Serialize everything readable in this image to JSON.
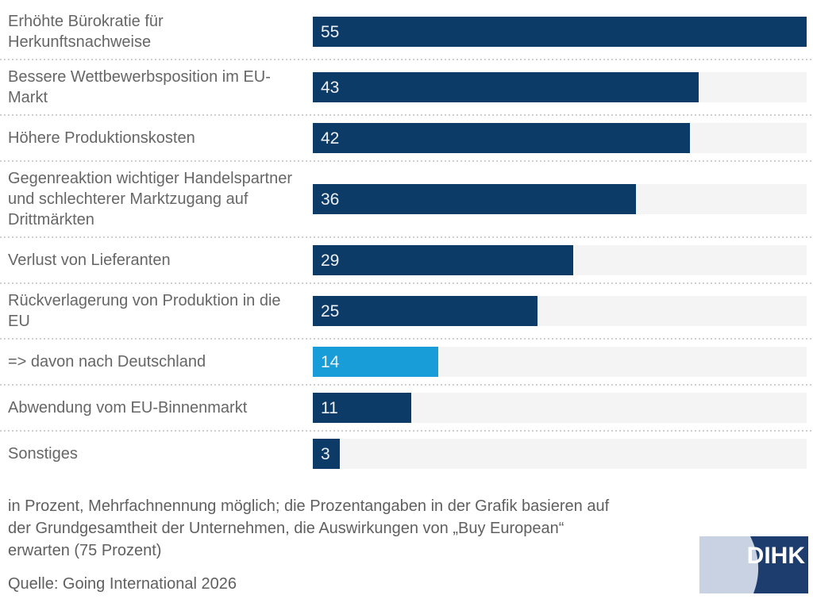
{
  "chart_data": {
    "type": "bar",
    "orientation": "horizontal",
    "title": "",
    "xlabel": "",
    "ylabel": "",
    "max": 55,
    "grid": false,
    "legend": "none",
    "categories": [
      "Erhöhte Bürokratie für Herkunftsnachweise",
      "Bessere Wettbewerbsposition im EU-Markt",
      "Höhere Produktionskosten",
      "Gegenreaktion wichtiger Handelspartner und schlechterer Marktzugang auf Drittmärkten",
      "Verlust von Lieferanten",
      "Rückverlagerung von Produktion in die EU",
      "=> davon nach Deutschland",
      "Abwendung vom EU-Binnenmarkt",
      "Sonstiges"
    ],
    "values": [
      55,
      43,
      42,
      36,
      29,
      25,
      14,
      11,
      3
    ],
    "highlight_index": 6,
    "unit": "Prozent"
  },
  "colors": {
    "bar": "#0d3b68",
    "bar_highlight": "#189dd9",
    "track": "#f4f4f4",
    "label_text": "#666666",
    "value_text": "#eef1f4",
    "footer_text": "#5f5f5f",
    "separator": "#cfcfcf",
    "logo_light": "#c9d2e2",
    "logo_dark": "#1d3d6f",
    "logo_text": "#ffffff"
  },
  "footer": {
    "note_lines": [
      "in Prozent, Mehrfachnennung möglich; die Prozentangaben in der Grafik basieren auf",
      "der Grundgesamtheit der Unternehmen, die Auswirkungen von „Buy European“",
      "erwarten (75 Prozent)"
    ],
    "source": "Quelle: Going International 2026"
  },
  "logo": {
    "text": "DIHK"
  }
}
